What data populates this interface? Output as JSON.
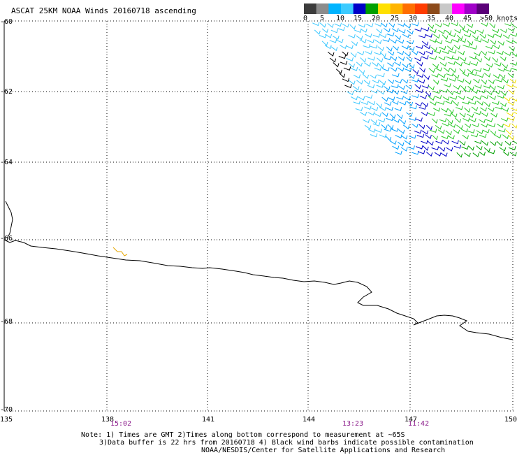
{
  "title": "ASCAT 25KM NOAA Winds 20160718 ascending",
  "legend": {
    "labels": [
      "0",
      "5",
      "10",
      "15",
      "20",
      "25",
      "30",
      "35",
      "40",
      "45",
      ">50 knots"
    ],
    "colors": [
      "#3c3c3c",
      "#8c8c8c",
      "#00b4ff",
      "#3ccbff",
      "#0000c8",
      "#00a000",
      "#ffe000",
      "#ffb400",
      "#ff6e00",
      "#ff3c00",
      "#8c4a1a",
      "#c8c8c8",
      "#ff00ff",
      "#a000c8",
      "#5a0078"
    ]
  },
  "latitude_labels": [
    "-60",
    "-62",
    "-64",
    "-66",
    "-68",
    "-70"
  ],
  "longitude_labels": [
    "135",
    "138",
    "141",
    "144",
    "147",
    "150"
  ],
  "pass_times": [
    "15:02",
    "13:23",
    "11:42"
  ],
  "notes": [
    "Note: 1) Times are GMT 2)Times along bottom correspond to measurement at ~65S",
    "3)Data buffer is 22 hrs from 20160718 4) Black wind barbs indicate possible contamination",
    "NOAA/NESDIS/Center for Satellite Applications and Research"
  ]
}
